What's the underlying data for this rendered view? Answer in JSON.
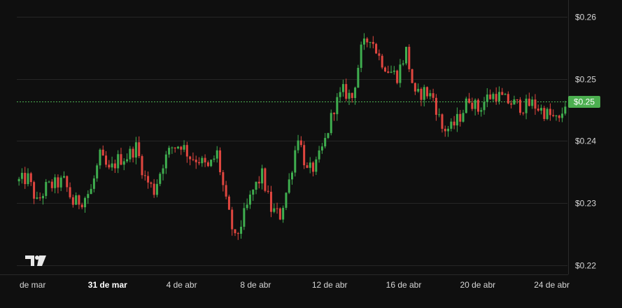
{
  "colors": {
    "up": "#3fae4f",
    "down": "#e0463f",
    "price_line": "#4caf50",
    "logo": "#e8e8e8"
  },
  "logo": {
    "icon": "tradingview-logo-icon"
  },
  "chart_data": {
    "type": "candlestick",
    "title": "",
    "xlabel": "",
    "ylabel": "",
    "ylim": [
      0.2185,
      0.2627
    ],
    "grid": true,
    "y_ticks": [
      {
        "value": 0.26,
        "label": "$0.26"
      },
      {
        "value": 0.25,
        "label": "$0.25"
      },
      {
        "value": 0.24,
        "label": "$0.24"
      },
      {
        "value": 0.23,
        "label": "$0.23"
      },
      {
        "value": 0.22,
        "label": "$0.22"
      }
    ],
    "x_ticks": [
      {
        "label": "de mar",
        "bold": false
      },
      {
        "label": "31 de mar",
        "bold": true
      },
      {
        "label": "4 de abr",
        "bold": false
      },
      {
        "label": "8 de abr",
        "bold": false
      },
      {
        "label": "12 de abr",
        "bold": false
      },
      {
        "label": "16 de abr",
        "bold": false
      },
      {
        "label": "20 de abr",
        "bold": false
      },
      {
        "label": "24 de abr",
        "bold": false
      }
    ],
    "current_price": {
      "value": 0.2463,
      "label": "$0.25"
    },
    "trend": [
      [
        0,
        0.2335
      ],
      [
        3,
        0.234
      ],
      [
        6,
        0.23
      ],
      [
        9,
        0.2325
      ],
      [
        12,
        0.233
      ],
      [
        15,
        0.2335
      ],
      [
        18,
        0.23
      ],
      [
        21,
        0.2305
      ],
      [
        24,
        0.232
      ],
      [
        27,
        0.2375
      ],
      [
        30,
        0.235
      ],
      [
        33,
        0.237
      ],
      [
        36,
        0.2375
      ],
      [
        39,
        0.239
      ],
      [
        42,
        0.234
      ],
      [
        45,
        0.232
      ],
      [
        48,
        0.2365
      ],
      [
        51,
        0.239
      ],
      [
        54,
        0.2395
      ],
      [
        57,
        0.2375
      ],
      [
        60,
        0.237
      ],
      [
        63,
        0.2355
      ],
      [
        66,
        0.238
      ],
      [
        69,
        0.23
      ],
      [
        72,
        0.224
      ],
      [
        75,
        0.228
      ],
      [
        78,
        0.232
      ],
      [
        81,
        0.2345
      ],
      [
        84,
        0.229
      ],
      [
        87,
        0.228
      ],
      [
        90,
        0.2335
      ],
      [
        93,
        0.241
      ],
      [
        96,
        0.235
      ],
      [
        99,
        0.236
      ],
      [
        102,
        0.24
      ],
      [
        105,
        0.2455
      ],
      [
        108,
        0.248
      ],
      [
        111,
        0.247
      ],
      [
        114,
        0.2545
      ],
      [
        117,
        0.257
      ],
      [
        120,
        0.2535
      ],
      [
        123,
        0.2515
      ],
      [
        126,
        0.2505
      ],
      [
        129,
        0.2545
      ],
      [
        132,
        0.247
      ],
      [
        135,
        0.248
      ],
      [
        138,
        0.247
      ],
      [
        141,
        0.242
      ],
      [
        144,
        0.242
      ],
      [
        147,
        0.244
      ],
      [
        150,
        0.247
      ],
      [
        153,
        0.245
      ],
      [
        156,
        0.247
      ],
      [
        159,
        0.2475
      ],
      [
        162,
        0.2465
      ],
      [
        165,
        0.246
      ],
      [
        168,
        0.2455
      ],
      [
        171,
        0.246
      ],
      [
        174,
        0.245
      ],
      [
        177,
        0.244
      ],
      [
        180,
        0.243
      ],
      [
        182,
        0.2462
      ]
    ]
  }
}
